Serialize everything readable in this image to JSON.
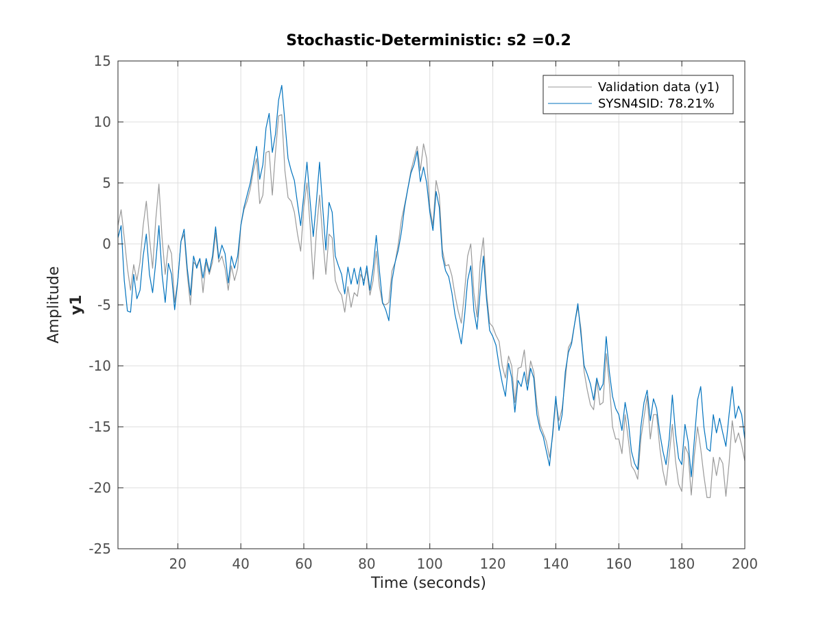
{
  "chart_data": {
    "type": "line",
    "title": "Stochastic-Deterministic: s2 =0.2",
    "xlabel": "Time (seconds)",
    "ylabel": "Amplitude",
    "ylabel_channel": "y1",
    "xlim": [
      1,
      200
    ],
    "ylim": [
      -25,
      15
    ],
    "xticks": [
      20,
      40,
      60,
      80,
      100,
      120,
      140,
      160,
      180,
      200
    ],
    "yticks": [
      15,
      10,
      5,
      0,
      -5,
      -10,
      -15,
      -20,
      -25
    ],
    "grid": true,
    "legend_position": "top-right",
    "series": [
      {
        "name": "Validation data (y1)",
        "color": "#999999",
        "x_start": 1,
        "x_step": 1,
        "values": [
          1.5,
          2.8,
          0.5,
          -2.0,
          -3.8,
          -1.7,
          -3.0,
          -1.5,
          1.5,
          3.5,
          0.5,
          -2.0,
          2.0,
          4.9,
          0.5,
          -2.5,
          -0.1,
          -0.8,
          -4.8,
          -3.0,
          0.2,
          0.8,
          -2.5,
          -5.0,
          -1.5,
          -1.8,
          -1.2,
          -4.0,
          -1.5,
          -2.5,
          -1.5,
          0.9,
          -1.5,
          -1.0,
          -2.0,
          -3.8,
          -1.8,
          -3.0,
          -2.0,
          1.5,
          2.8,
          3.5,
          4.5,
          6.0,
          7.0,
          3.3,
          4.0,
          7.5,
          7.6,
          4.0,
          7.5,
          10.5,
          10.6,
          6.0,
          3.8,
          3.5,
          2.6,
          0.8,
          -0.6,
          3.0,
          5.0,
          1.5,
          -2.9,
          1.0,
          4.0,
          0.5,
          -2.5,
          0.8,
          0.5,
          -3.0,
          -3.8,
          -4.2,
          -5.6,
          -3.5,
          -5.2,
          -4.0,
          -4.3,
          -2.5,
          -3.0,
          -2.2,
          -4.2,
          -3.0,
          -0.6,
          -3.5,
          -4.9,
          -5.0,
          -4.8,
          -2.2,
          -1.5,
          0.0,
          2.0,
          3.2,
          4.5,
          6.0,
          7.0,
          8.0,
          6.0,
          8.2,
          7.0,
          3.0,
          1.5,
          5.2,
          4.0,
          -0.5,
          -1.8,
          -1.7,
          -2.6,
          -4.2,
          -5.5,
          -6.5,
          -4.0,
          -1.0,
          0.0,
          -4.0,
          -6.0,
          -1.5,
          0.5,
          -4.0,
          -6.5,
          -6.8,
          -7.5,
          -8.0,
          -10.0,
          -11.0,
          -9.2,
          -10.0,
          -13.0,
          -10.2,
          -10.1,
          -8.7,
          -11.5,
          -9.6,
          -10.5,
          -13.2,
          -14.8,
          -15.5,
          -16.2,
          -17.5,
          -15.8,
          -12.8,
          -14.5,
          -13.5,
          -11.2,
          -8.5,
          -8.0,
          -6.5,
          -5.2,
          -7.0,
          -10.5,
          -12.0,
          -13.2,
          -13.6,
          -11.2,
          -13.2,
          -13.0,
          -9.0,
          -11.5,
          -15.0,
          -16.0,
          -16.0,
          -17.2,
          -14.0,
          -16.0,
          -18.2,
          -18.6,
          -19.3,
          -16.0,
          -14.2,
          -12.5,
          -16.0,
          -14.0,
          -14.0,
          -16.7,
          -18.6,
          -19.8,
          -17.3,
          -14.8,
          -17.8,
          -19.7,
          -20.3,
          -16.6,
          -17.2,
          -20.6,
          -17.3,
          -15.0,
          -16.8,
          -19.0,
          -20.8,
          -20.8,
          -17.5,
          -19.0,
          -17.5,
          -18.0,
          -20.7,
          -18.0,
          -14.5,
          -16.3,
          -15.5,
          -16.5,
          -17.8
        ]
      },
      {
        "name": "SYSN4SID: 78.21%",
        "color": "#0072bd",
        "x_start": 1,
        "x_step": 1,
        "values": [
          0.5,
          1.5,
          -3.0,
          -5.5,
          -5.6,
          -2.5,
          -4.5,
          -3.8,
          -1.0,
          0.8,
          -2.5,
          -4.0,
          -1.5,
          1.5,
          -2.5,
          -4.8,
          -1.6,
          -2.5,
          -5.4,
          -3.0,
          0.2,
          1.2,
          -2.0,
          -4.2,
          -1.0,
          -2.0,
          -1.2,
          -2.8,
          -1.2,
          -2.3,
          -1.0,
          1.4,
          -1.2,
          -0.1,
          -0.8,
          -3.2,
          -1.0,
          -2.0,
          -1.0,
          1.5,
          3.0,
          4.0,
          5.0,
          6.5,
          8.0,
          5.3,
          6.5,
          9.5,
          10.7,
          7.5,
          9.0,
          11.8,
          13.0,
          10.0,
          7.0,
          6.0,
          5.2,
          3.3,
          1.5,
          4.0,
          6.7,
          3.5,
          0.6,
          3.5,
          6.7,
          3.0,
          -0.5,
          3.4,
          2.6,
          -1.0,
          -1.8,
          -2.5,
          -4.1,
          -1.9,
          -3.3,
          -2.0,
          -3.3,
          -1.9,
          -3.4,
          -1.8,
          -3.8,
          -2.0,
          0.7,
          -2.2,
          -4.8,
          -5.4,
          -6.3,
          -3.0,
          -1.5,
          -0.5,
          1.0,
          3.0,
          4.5,
          5.8,
          6.5,
          7.6,
          5.1,
          6.3,
          5.0,
          2.6,
          1.1,
          4.3,
          3.0,
          -1.0,
          -2.2,
          -2.7,
          -4.0,
          -5.8,
          -7.0,
          -8.2,
          -6.0,
          -3.0,
          -1.8,
          -5.5,
          -7.0,
          -3.8,
          -1.0,
          -4.5,
          -7.1,
          -7.6,
          -8.3,
          -10.0,
          -11.4,
          -12.5,
          -9.8,
          -11.0,
          -13.8,
          -11.2,
          -11.7,
          -10.5,
          -12.0,
          -10.2,
          -11.0,
          -14.0,
          -15.2,
          -15.8,
          -17.0,
          -18.2,
          -15.5,
          -12.5,
          -15.3,
          -14.0,
          -10.5,
          -8.9,
          -8.2,
          -6.5,
          -4.9,
          -7.5,
          -10.0,
          -10.7,
          -11.5,
          -12.8,
          -11.0,
          -12.0,
          -11.5,
          -7.6,
          -10.5,
          -12.5,
          -13.5,
          -14.0,
          -15.3,
          -13.0,
          -14.5,
          -17.0,
          -18.0,
          -18.5,
          -15.0,
          -13.0,
          -12.0,
          -14.5,
          -12.7,
          -13.5,
          -15.5,
          -17.0,
          -18.1,
          -16.0,
          -12.4,
          -15.5,
          -17.6,
          -18.1,
          -14.8,
          -16.2,
          -19.1,
          -16.0,
          -12.8,
          -11.7,
          -15.0,
          -16.8,
          -17.0,
          -14.0,
          -15.5,
          -14.3,
          -15.5,
          -16.6,
          -14.0,
          -11.7,
          -14.3,
          -13.3,
          -14.0,
          -16.0
        ]
      }
    ]
  }
}
